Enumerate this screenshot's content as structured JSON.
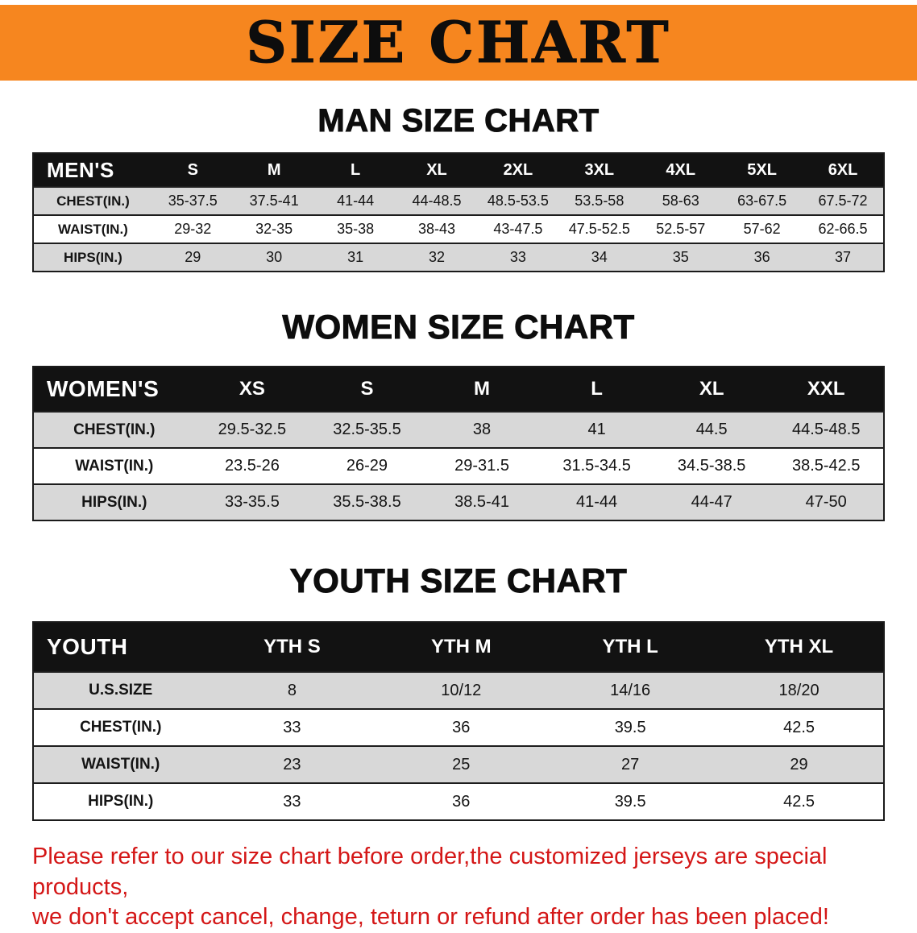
{
  "banner": {
    "title": "SIZE CHART"
  },
  "chart_data": [
    {
      "type": "table",
      "title": "MAN SIZE CHART",
      "header": [
        "MEN'S",
        "S",
        "M",
        "L",
        "XL",
        "2XL",
        "3XL",
        "4XL",
        "5XL",
        "6XL"
      ],
      "rows": [
        [
          "CHEST(IN.)",
          "35-37.5",
          "37.5-41",
          "41-44",
          "44-48.5",
          "48.5-53.5",
          "53.5-58",
          "58-63",
          "63-67.5",
          "67.5-72"
        ],
        [
          "WAIST(IN.)",
          "29-32",
          "32-35",
          "35-38",
          "38-43",
          "43-47.5",
          "47.5-52.5",
          "52.5-57",
          "57-62",
          "62-66.5"
        ],
        [
          "HIPS(IN.)",
          "29",
          "30",
          "31",
          "32",
          "33",
          "34",
          "35",
          "36",
          "37"
        ]
      ]
    },
    {
      "type": "table",
      "title": "WOMEN SIZE CHART",
      "header": [
        "WOMEN'S",
        "XS",
        "S",
        "M",
        "L",
        "XL",
        "XXL"
      ],
      "rows": [
        [
          "CHEST(IN.)",
          "29.5-32.5",
          "32.5-35.5",
          "38",
          "41",
          "44.5",
          "44.5-48.5"
        ],
        [
          "WAIST(IN.)",
          "23.5-26",
          "26-29",
          "29-31.5",
          "31.5-34.5",
          "34.5-38.5",
          "38.5-42.5"
        ],
        [
          "HIPS(IN.)",
          "33-35.5",
          "35.5-38.5",
          "38.5-41",
          "41-44",
          "44-47",
          "47-50"
        ]
      ]
    },
    {
      "type": "table",
      "title": "YOUTH SIZE CHART",
      "header": [
        "YOUTH",
        "YTH S",
        "YTH M",
        "YTH L",
        "YTH XL"
      ],
      "rows": [
        [
          "U.S.SIZE",
          "8",
          "10/12",
          "14/16",
          "18/20"
        ],
        [
          "CHEST(IN.)",
          "33",
          "36",
          "39.5",
          "42.5"
        ],
        [
          "WAIST(IN.)",
          "23",
          "25",
          "27",
          "29"
        ],
        [
          "HIPS(IN.)",
          "33",
          "36",
          "39.5",
          "42.5"
        ]
      ]
    }
  ],
  "note": {
    "line1": "Please refer to our size chart before order,the customized jerseys are special products,",
    "line2": "we don't accept cancel, change, teturn or refund after order has been placed!"
  },
  "colors": {
    "banner_orange": "#f6861f",
    "table_header_black": "#121212",
    "row_gray": "#d8d8d8",
    "note_red": "#d41717"
  }
}
